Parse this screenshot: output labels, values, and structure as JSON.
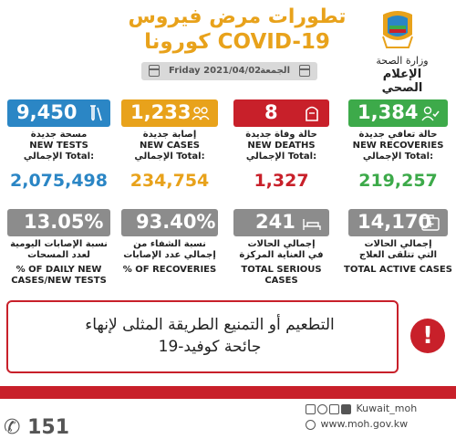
{
  "header": {
    "title_line1": "تطورات مرض فيروس",
    "title_line2": "كورونا COVID-19",
    "ministry": "وزارة الصحة",
    "media": "الإعلام الصحي",
    "day_ar": "الجمعة",
    "date_en": "Friday 2021/04/02"
  },
  "colors": {
    "blue": "#2b86c5",
    "yellow": "#e8a21b",
    "red": "#c8202a",
    "green": "#3daa4a",
    "gray": "#8c8c8c"
  },
  "stats_row1": [
    {
      "value": "9,450",
      "label_ar": "مسحة جديدة",
      "label_en": "NEW TESTS",
      "total_label": "الإجمالي Total:",
      "total": "2,075,498",
      "icon": "test-tube-icon"
    },
    {
      "value": "1,233",
      "label_ar": "إصابة جديدة",
      "label_en": "NEW CASES",
      "total_label": "الإجمالي Total:",
      "total": "234,754",
      "icon": "people-icon"
    },
    {
      "value": "8",
      "label_ar": "حالة وفاة جديدة",
      "label_en": "NEW DEATHS",
      "total_label": "الإجمالي Total:",
      "total": "1,327",
      "icon": "tombstone-icon"
    },
    {
      "value": "1,384",
      "label_ar": "حالة تعافي جديدة",
      "label_en": "NEW RECOVERIES",
      "total_label": "الإجمالي Total:",
      "total": "219,257",
      "icon": "person-check-icon"
    }
  ],
  "stats_row2": [
    {
      "value": "13.05%",
      "label_line1": "نسبة الإصابات اليومية",
      "label_line2": "لعدد المسحات",
      "label_line3": "% OF DAILY NEW",
      "label_line4": "CASES/NEW TESTS"
    },
    {
      "value": "93.40%",
      "label_line1": "نسبة الشفاء من",
      "label_line2": "إجمالي عدد الإصابات",
      "label_line3": "% OF RECOVERIES",
      "label_line4": ""
    },
    {
      "value": "241",
      "label_line1": "إجمالي الحالات",
      "label_line2": "في العناية المركزة",
      "label_line3": "TOTAL SERIOUS CASES",
      "label_line4": "",
      "icon": "hospital-bed-icon"
    },
    {
      "value": "14,170",
      "label_line1": "إجمالي الحالات",
      "label_line2": "التي تتلقى العلاج",
      "label_line3": "TOTAL ACTIVE CASES",
      "label_line4": "",
      "icon": "medical-case-icon"
    }
  ],
  "message": {
    "line1": "التطعيم أو التمنيع الطريقة المثلى لإنهاء",
    "line2": "جائحة كوفيد-19",
    "alert_symbol": "!"
  },
  "footer": {
    "handle": "Kuwait_moh",
    "url": "www.moh.gov.kw",
    "number": "151"
  }
}
